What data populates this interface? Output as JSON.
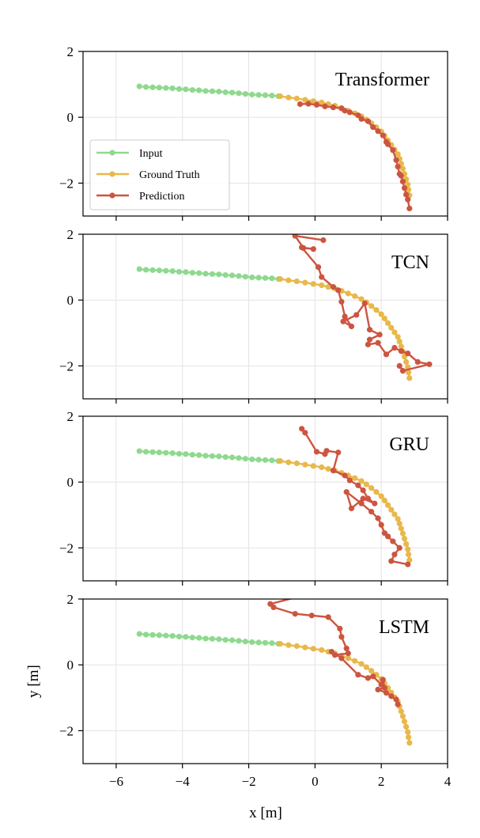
{
  "chart_data": {
    "type": "line",
    "xlabel": "x [m]",
    "ylabel": "y [m]",
    "xlim": [
      -7,
      4
    ],
    "ylim": [
      -3,
      2
    ],
    "x_ticks": [
      -6,
      -4,
      -2,
      0,
      2,
      4
    ],
    "x_tick_labels": [
      "−6",
      "−4",
      "−2",
      "0",
      "2",
      "4"
    ],
    "y_ticks": [
      2,
      0,
      -2
    ],
    "y_tick_labels": [
      "2",
      "0",
      "−2"
    ],
    "grid": true,
    "legend": {
      "position": "lower-left",
      "entries": [
        "Input",
        "Ground Truth",
        "Prediction"
      ]
    },
    "colors": {
      "input": "#8fd98f",
      "ground_truth": "#e8b84a",
      "prediction": "#cc5540"
    },
    "input": {
      "x": [
        -5.3,
        -5.1,
        -4.9,
        -4.7,
        -4.5,
        -4.3,
        -4.1,
        -3.9,
        -3.7,
        -3.5,
        -3.3,
        -3.1,
        -2.9,
        -2.7,
        -2.5,
        -2.3,
        -2.1,
        -1.9,
        -1.7,
        -1.5,
        -1.3,
        -1.1
      ],
      "y": [
        0.94,
        0.92,
        0.91,
        0.9,
        0.89,
        0.88,
        0.86,
        0.85,
        0.83,
        0.82,
        0.8,
        0.79,
        0.78,
        0.76,
        0.75,
        0.73,
        0.71,
        0.69,
        0.68,
        0.67,
        0.66,
        0.64
      ]
    },
    "ground_truth": {
      "x": [
        -1.05,
        -0.8,
        -0.55,
        -0.3,
        -0.05,
        0.2,
        0.4,
        0.6,
        0.8,
        1.0,
        1.2,
        1.4,
        1.55,
        1.7,
        1.85,
        2.0,
        2.1,
        2.2,
        2.3,
        2.4,
        2.5,
        2.55,
        2.6,
        2.65,
        2.7,
        2.75,
        2.8,
        2.82,
        2.85
      ],
      "y": [
        0.64,
        0.6,
        0.57,
        0.53,
        0.49,
        0.45,
        0.4,
        0.35,
        0.28,
        0.2,
        0.12,
        0.03,
        -0.07,
        -0.18,
        -0.3,
        -0.43,
        -0.56,
        -0.7,
        -0.84,
        -0.98,
        -1.12,
        -1.26,
        -1.41,
        -1.56,
        -1.72,
        -1.88,
        -2.04,
        -2.2,
        -2.37
      ]
    },
    "panels": [
      {
        "title": "Transformer",
        "prediction": {
          "x": [
            -0.45,
            -0.2,
            0.05,
            0.3,
            0.55,
            0.8,
            0.9,
            1.05,
            1.3,
            1.4,
            1.6,
            1.75,
            1.9,
            2.05,
            2.15,
            2.2,
            2.35,
            2.45,
            2.5,
            2.55,
            2.6,
            2.65,
            2.7,
            2.75,
            2.8,
            2.85
          ],
          "y": [
            0.4,
            0.41,
            0.38,
            0.33,
            0.3,
            0.27,
            0.2,
            0.15,
            0.06,
            -0.05,
            -0.12,
            -0.3,
            -0.42,
            -0.55,
            -0.75,
            -0.82,
            -1.0,
            -1.3,
            -1.5,
            -1.72,
            -1.78,
            -1.95,
            -2.15,
            -2.35,
            -2.5,
            -2.77
          ]
        }
      },
      {
        "title": "TCN",
        "prediction": {
          "x": [
            0.25,
            -0.6,
            -0.35,
            -0.05,
            -0.4,
            0.1,
            0.2,
            0.55,
            0.7,
            0.8,
            0.9,
            1.1,
            0.85,
            1.25,
            1.5,
            1.65,
            1.95,
            1.65,
            1.6,
            1.9,
            2.15,
            2.4,
            2.6,
            2.8,
            3.1,
            3.45,
            2.65,
            2.55
          ],
          "y": [
            1.82,
            1.95,
            1.58,
            1.55,
            1.6,
            1.0,
            0.7,
            0.4,
            0.3,
            -0.05,
            -0.5,
            -0.8,
            -0.65,
            -0.45,
            -0.1,
            -0.9,
            -1.05,
            -1.2,
            -1.35,
            -1.3,
            -1.65,
            -1.45,
            -1.55,
            -1.62,
            -1.88,
            -1.95,
            -2.15,
            -2.0
          ]
        }
      },
      {
        "title": "GRU",
        "prediction": {
          "x": [
            -0.4,
            -0.3,
            0.05,
            0.3,
            0.35,
            0.7,
            0.55,
            0.9,
            1.05,
            1.3,
            1.45,
            1.6,
            1.8,
            1.45,
            1.1,
            0.95,
            1.4,
            1.7,
            1.9,
            2.0,
            2.1,
            2.2,
            2.35,
            2.55,
            2.4,
            2.3,
            2.8
          ],
          "y": [
            1.62,
            1.5,
            0.92,
            0.85,
            0.95,
            0.9,
            0.35,
            0.2,
            0.05,
            -0.1,
            -0.25,
            -0.5,
            -0.65,
            -0.5,
            -0.8,
            -0.3,
            -0.65,
            -0.9,
            -1.1,
            -1.3,
            -1.55,
            -1.65,
            -1.8,
            -2.0,
            -2.2,
            -2.4,
            -2.5
          ]
        }
      },
      {
        "title": "LSTM",
        "prediction": {
          "x": [
            0.0,
            -1.35,
            -1.25,
            -0.6,
            -0.1,
            0.4,
            0.75,
            0.8,
            0.95,
            1.0,
            0.6,
            0.5,
            0.8,
            1.3,
            1.6,
            1.75,
            2.0,
            2.05,
            2.1,
            1.9,
            2.15,
            2.3,
            2.45,
            2.5
          ],
          "y": [
            2.2,
            1.85,
            1.75,
            1.55,
            1.5,
            1.45,
            1.1,
            0.85,
            0.5,
            0.35,
            0.3,
            0.4,
            0.2,
            -0.3,
            -0.4,
            -0.35,
            -0.6,
            -0.45,
            -0.7,
            -0.75,
            -0.85,
            -0.95,
            -1.05,
            -1.2
          ]
        }
      }
    ]
  }
}
